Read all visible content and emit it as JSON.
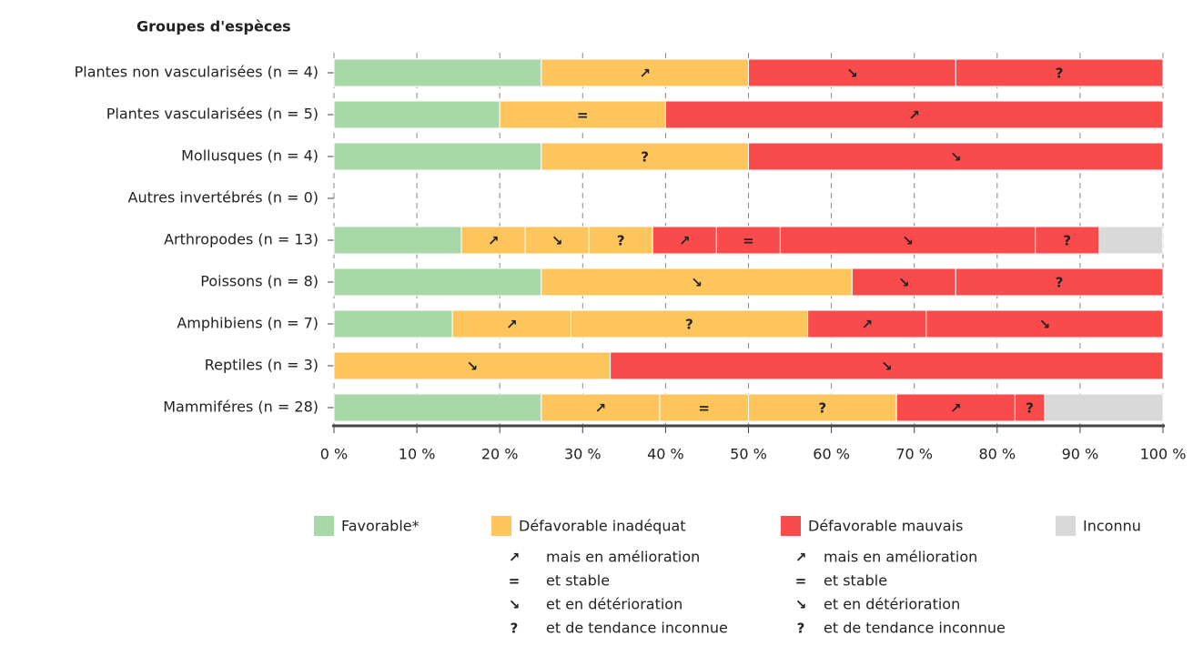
{
  "chart_data": {
    "type": "stacked-bar-horizontal",
    "title": "Groupes d'espèces",
    "xlim": [
      0,
      100
    ],
    "xticks": [
      {
        "value": 0,
        "label": "0 %"
      },
      {
        "value": 10,
        "label": "10 %"
      },
      {
        "value": 20,
        "label": "20 %"
      },
      {
        "value": 30,
        "label": "30 %"
      },
      {
        "value": 40,
        "label": "40 %"
      },
      {
        "value": 50,
        "label": "50 %"
      },
      {
        "value": 60,
        "label": "60 %"
      },
      {
        "value": 70,
        "label": "70 %"
      },
      {
        "value": 80,
        "label": "80 %"
      },
      {
        "value": 90,
        "label": "90 %"
      },
      {
        "value": 100,
        "label": "100 %"
      }
    ],
    "grid": true,
    "categories": [
      "Plantes non vascularisées (n = 4)",
      "Plantes vascularisées (n = 5)",
      "Mollusques (n = 4)",
      "Autres invertébrés (n = 0)",
      "Arthropodes (n = 13)",
      "Poissons (n = 8)",
      "Amphibiens (n = 7)",
      "Reptiles (n = 3)",
      "Mammiféres (n = 28)"
    ],
    "bars": [
      {
        "segments": [
          {
            "value": 25,
            "color": "#a8d8a8"
          },
          {
            "value": 25,
            "color": "#fdc55c",
            "symbol": "↗"
          },
          {
            "value": 25,
            "color": "#f94a4c",
            "symbol": "↘"
          },
          {
            "value": 25,
            "color": "#f94a4c",
            "symbol": "?"
          }
        ]
      },
      {
        "segments": [
          {
            "value": 20,
            "color": "#a8d8a8"
          },
          {
            "value": 20,
            "color": "#fdc55c",
            "symbol": "="
          },
          {
            "value": 60,
            "color": "#f94a4c",
            "symbol": "↗"
          }
        ]
      },
      {
        "segments": [
          {
            "value": 25,
            "color": "#a8d8a8"
          },
          {
            "value": 25,
            "color": "#fdc55c",
            "symbol": "?"
          },
          {
            "value": 50,
            "color": "#f94a4c",
            "symbol": "↘"
          }
        ]
      },
      {
        "segments": []
      },
      {
        "segments": [
          {
            "value": 15.38,
            "color": "#a8d8a8"
          },
          {
            "value": 7.69,
            "color": "#fdc55c",
            "symbol": "↗"
          },
          {
            "value": 7.69,
            "color": "#fdc55c",
            "symbol": "↘"
          },
          {
            "value": 7.69,
            "color": "#fdc55c",
            "symbol": "?"
          },
          {
            "value": 7.69,
            "color": "#f94a4c",
            "symbol": "↗"
          },
          {
            "value": 7.69,
            "color": "#f94a4c",
            "symbol": "="
          },
          {
            "value": 30.77,
            "color": "#f94a4c",
            "symbol": "↘"
          },
          {
            "value": 7.69,
            "color": "#f94a4c",
            "symbol": "?"
          },
          {
            "value": 7.69,
            "color": "#d9d9d9"
          }
        ]
      },
      {
        "segments": [
          {
            "value": 25,
            "color": "#a8d8a8"
          },
          {
            "value": 37.5,
            "color": "#fdc55c",
            "symbol": "↘"
          },
          {
            "value": 12.5,
            "color": "#f94a4c",
            "symbol": "↘"
          },
          {
            "value": 25,
            "color": "#f94a4c",
            "symbol": "?"
          }
        ]
      },
      {
        "segments": [
          {
            "value": 14.29,
            "color": "#a8d8a8"
          },
          {
            "value": 14.29,
            "color": "#fdc55c",
            "symbol": "↗"
          },
          {
            "value": 28.57,
            "color": "#fdc55c",
            "symbol": "?"
          },
          {
            "value": 14.29,
            "color": "#f94a4c",
            "symbol": "↗"
          },
          {
            "value": 28.57,
            "color": "#f94a4c",
            "symbol": "↘"
          }
        ]
      },
      {
        "segments": [
          {
            "value": 33.33,
            "color": "#fdc55c",
            "symbol": "↘"
          },
          {
            "value": 66.67,
            "color": "#f94a4c",
            "symbol": "↘"
          }
        ]
      },
      {
        "segments": [
          {
            "value": 25,
            "color": "#a8d8a8"
          },
          {
            "value": 14.29,
            "color": "#fdc55c",
            "symbol": "↗"
          },
          {
            "value": 10.71,
            "color": "#fdc55c",
            "symbol": "="
          },
          {
            "value": 17.86,
            "color": "#fdc55c",
            "symbol": "?"
          },
          {
            "value": 14.29,
            "color": "#f94a4c",
            "symbol": "↗"
          },
          {
            "value": 3.57,
            "color": "#f94a4c",
            "symbol": "?"
          },
          {
            "value": 14.29,
            "color": "#d9d9d9"
          }
        ]
      }
    ],
    "legend": {
      "statuses": [
        {
          "name": "Favorable*",
          "color": "#a8d8a8"
        },
        {
          "name": "Défavorable inadéquat",
          "color": "#fdc55c"
        },
        {
          "name": "Défavorable mauvais",
          "color": "#f94a4c"
        },
        {
          "name": "Inconnu",
          "color": "#d9d9d9"
        }
      ],
      "trends": [
        [
          {
            "symbol": "↗",
            "text": "mais en amélioration"
          },
          {
            "symbol": "=",
            "text": "et stable"
          },
          {
            "symbol": "↘",
            "text": "et en détérioration"
          },
          {
            "symbol": "?",
            "text": "et de tendance inconnue"
          }
        ],
        [
          {
            "symbol": "↗",
            "text": "mais en amélioration"
          },
          {
            "symbol": "=",
            "text": "et stable"
          },
          {
            "symbol": "↘",
            "text": "et en détérioration"
          },
          {
            "symbol": "?",
            "text": "et de tendance inconnue"
          }
        ]
      ]
    }
  }
}
